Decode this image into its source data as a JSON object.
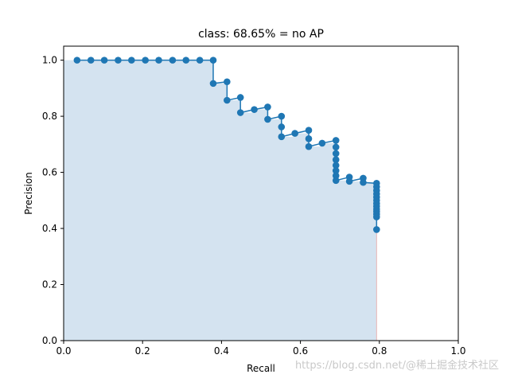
{
  "chart_data": {
    "type": "line",
    "title": "class: 68.65% = no AP",
    "xlabel": "Recall",
    "ylabel": "Precision",
    "xlim": [
      0.0,
      1.0
    ],
    "ylim": [
      0.0,
      1.05
    ],
    "xticks": [
      "0.0",
      "0.2",
      "0.4",
      "0.6",
      "0.8",
      "1.0"
    ],
    "yticks": [
      "0.0",
      "0.2",
      "0.4",
      "0.6",
      "0.8",
      "1.0"
    ],
    "grid": false,
    "colors": {
      "line": "#1f77b4",
      "fill": "#d4e3f0",
      "envelope": "#e8b4b4"
    },
    "series": [
      {
        "x": [
          0.034,
          0.069,
          0.103,
          0.138,
          0.172,
          0.207,
          0.241,
          0.276,
          0.31,
          0.345,
          0.379,
          0.379,
          0.414,
          0.414,
          0.448,
          0.448,
          0.483,
          0.517,
          0.517,
          0.552,
          0.552,
          0.552,
          0.586,
          0.621,
          0.621,
          0.621,
          0.655,
          0.69,
          0.69,
          0.69,
          0.69,
          0.69,
          0.69,
          0.69,
          0.69,
          0.724,
          0.724,
          0.759,
          0.759,
          0.793,
          0.793,
          0.793,
          0.793,
          0.793,
          0.793,
          0.793,
          0.793,
          0.793,
          0.793,
          0.793,
          0.793,
          0.793
        ],
        "y": [
          1.0,
          1.0,
          1.0,
          1.0,
          1.0,
          1.0,
          1.0,
          1.0,
          1.0,
          1.0,
          1.0,
          0.917,
          0.923,
          0.857,
          0.867,
          0.813,
          0.824,
          0.833,
          0.789,
          0.8,
          0.762,
          0.727,
          0.739,
          0.75,
          0.72,
          0.692,
          0.704,
          0.714,
          0.69,
          0.667,
          0.645,
          0.625,
          0.606,
          0.588,
          0.571,
          0.583,
          0.568,
          0.579,
          0.564,
          0.561,
          0.548,
          0.535,
          0.523,
          0.511,
          0.5,
          0.489,
          0.479,
          0.469,
          0.46,
          0.451,
          0.441,
          0.396
        ]
      }
    ]
  },
  "watermark": "https://blog.csdn.net/@稀土掘金技术社区"
}
